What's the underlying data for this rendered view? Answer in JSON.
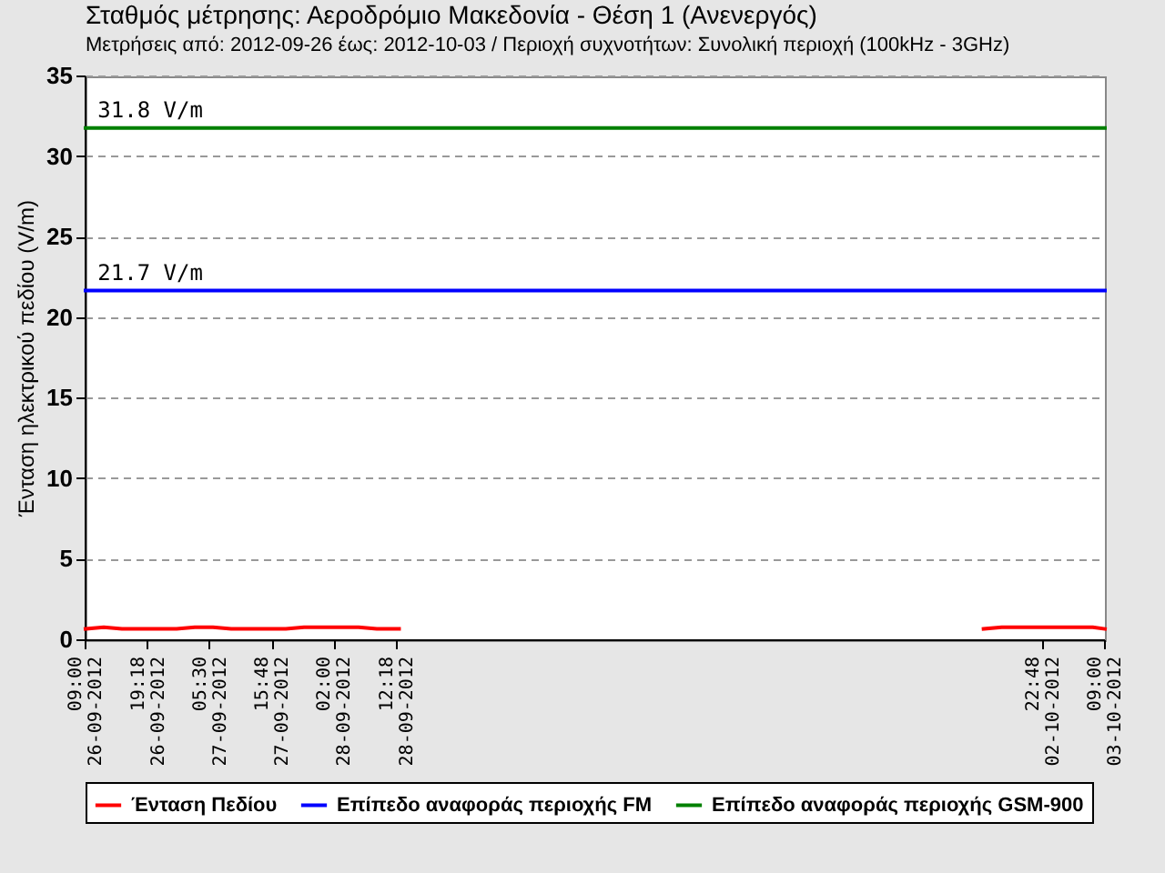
{
  "chart_data": {
    "type": "line",
    "title": "Σταθμός μέτρησης: Αεροδρόμιο Μακεδονία - Θέση 1 (Ανενεργός)",
    "subtitle": "Μετρήσεις από: 2012-09-26 έως: 2012-10-03 / Περιοχή συχνοτήτων: Συνολική περιοχή (100kHz - 3GHz)",
    "ylabel": "Ένταση ηλεκτρικού πεδίου (V/m)",
    "xlim": [
      "2012-09-26T09:00",
      "2012-10-03T09:00"
    ],
    "xticks": [
      {
        "value": "2012-09-26T09:00",
        "label": "09:00\n26-09-2012"
      },
      {
        "value": "2012-09-26T19:18",
        "label": "19:18\n26-09-2012"
      },
      {
        "value": "2012-09-27T05:30",
        "label": "05:30\n27-09-2012"
      },
      {
        "value": "2012-09-27T15:48",
        "label": "15:48\n27-09-2012"
      },
      {
        "value": "2012-09-28T02:00",
        "label": "02:00\n28-09-2012"
      },
      {
        "value": "2012-09-28T12:18",
        "label": "12:18\n28-09-2012"
      },
      {
        "value": "2012-10-02T22:48",
        "label": "22:48\n02-10-2012"
      },
      {
        "value": "2012-10-03T09:00",
        "label": "09:00\n03-10-2012"
      }
    ],
    "ylim": [
      0,
      35
    ],
    "yticks": [
      0,
      5,
      10,
      15,
      20,
      25,
      30,
      35
    ],
    "grid": "y",
    "legend": "bottom",
    "series": [
      {
        "name": "Ένταση Πεδίου",
        "color": "#ff0000",
        "type": "line",
        "x": [
          "2012-09-26T09:00",
          "2012-09-26T12:00",
          "2012-09-26T15:00",
          "2012-09-26T18:00",
          "2012-09-26T21:00",
          "2012-09-27T00:00",
          "2012-09-27T03:00",
          "2012-09-27T06:00",
          "2012-09-27T09:00",
          "2012-09-27T12:00",
          "2012-09-27T15:00",
          "2012-09-27T18:00",
          "2012-09-27T21:00",
          "2012-09-28T00:00",
          "2012-09-28T03:00",
          "2012-09-28T06:00",
          "2012-09-28T09:00",
          "2012-09-28T12:40",
          "2012-09-30T00:00",
          "2012-10-02T13:00",
          "2012-10-02T16:00",
          "2012-10-02T19:00",
          "2012-10-02T22:00",
          "2012-10-03T01:00",
          "2012-10-03T04:00",
          "2012-10-03T07:00",
          "2012-10-03T09:00"
        ],
        "values": [
          0.7,
          0.8,
          0.7,
          0.7,
          0.7,
          0.7,
          0.8,
          0.8,
          0.7,
          0.7,
          0.7,
          0.7,
          0.8,
          0.8,
          0.8,
          0.8,
          0.7,
          0.7,
          null,
          0.7,
          0.8,
          0.8,
          0.8,
          0.8,
          0.8,
          0.8,
          0.7
        ]
      },
      {
        "name": "Επίπεδο αναφοράς περιοχής FM",
        "color": "#0000ff",
        "type": "line",
        "x": [
          "2012-09-26T09:00",
          "2012-10-03T09:00"
        ],
        "values": [
          21.7,
          21.7
        ]
      },
      {
        "name": "Επίπεδο αναφοράς περιοχής GSM-900",
        "color": "#008000",
        "type": "line",
        "x": [
          "2012-09-26T09:00",
          "2012-10-03T09:00"
        ],
        "values": [
          31.8,
          31.8
        ]
      }
    ],
    "annotations": [
      {
        "text": "21.7 V/m",
        "x": "2012-09-26T11:00",
        "y": 21.7
      },
      {
        "text": "31.8 V/m",
        "x": "2012-09-26T11:00",
        "y": 31.8
      }
    ]
  }
}
